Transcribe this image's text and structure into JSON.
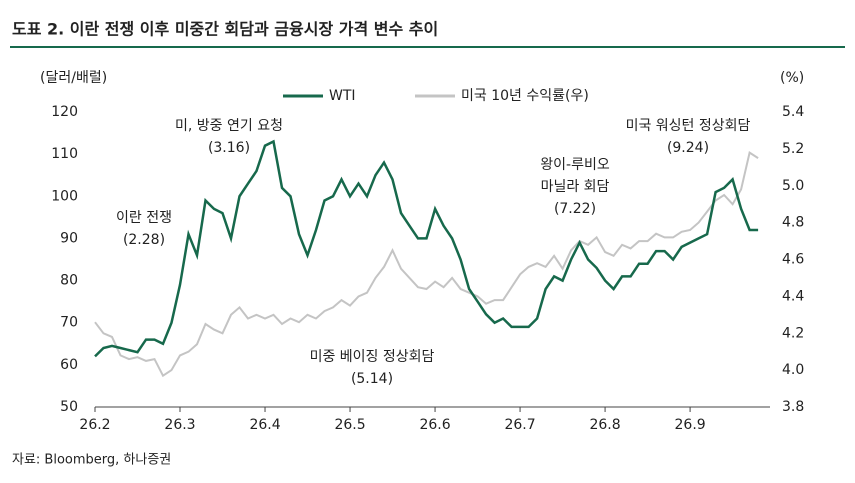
{
  "chart_data": {
    "type": "line",
    "title": "도표 2. 이란 전쟁 이후 미중간 회담과 금융시장 가격 변수 추이",
    "y_label": "(달러/배럴)",
    "y2_label": "(%)",
    "source": "자료: Bloomberg, 하나증권",
    "xlim": [
      26.2,
      26.994
    ],
    "xticks": [
      26.2,
      26.3,
      26.4,
      26.5,
      26.6,
      26.7,
      26.8,
      26.9
    ],
    "ylim": [
      50,
      120
    ],
    "yticks": [
      50,
      60,
      70,
      80,
      90,
      100,
      110,
      120
    ],
    "y2lim": [
      3.8,
      5.4
    ],
    "y2ticks": [
      3.8,
      {
        "value": 4,
        "label": "4.0"
      },
      4.2,
      4.4,
      4.6,
      4.8,
      {
        "value": 5,
        "label": "5.0"
      },
      5.2,
      5.4
    ],
    "x": [
      26.2,
      26.21,
      26.22,
      26.23,
      26.24,
      26.25,
      26.26,
      26.27,
      26.28,
      26.29,
      26.3,
      26.31,
      26.32,
      26.33,
      26.34,
      26.35,
      26.36,
      26.37,
      26.38,
      26.39,
      26.4,
      26.41,
      26.42,
      26.43,
      26.44,
      26.45,
      26.46,
      26.47,
      26.48,
      26.49,
      26.5,
      26.51,
      26.52,
      26.53,
      26.54,
      26.55,
      26.56,
      26.57,
      26.58,
      26.59,
      26.6,
      26.61,
      26.62,
      26.63,
      26.64,
      26.65,
      26.66,
      26.67,
      26.68,
      26.69,
      26.7,
      26.71,
      26.72,
      26.73,
      26.74,
      26.75,
      26.76,
      26.77,
      26.78,
      26.79,
      26.8,
      26.81,
      26.82,
      26.83,
      26.84,
      26.85,
      26.86,
      26.87,
      26.88,
      26.89,
      26.9,
      26.91,
      26.92,
      26.93,
      26.94,
      26.95,
      26.96,
      26.97,
      26.98
    ],
    "series": [
      {
        "name": "WTI",
        "color": "#17694c",
        "values": [
          62,
          64,
          64.5,
          64,
          63.5,
          63,
          66,
          66,
          65,
          70,
          79,
          91,
          86,
          99,
          97,
          96,
          90,
          100,
          103,
          106,
          112,
          113,
          102,
          100,
          91,
          86,
          92,
          99,
          100,
          104,
          100,
          103,
          100,
          105,
          108,
          104,
          96,
          93,
          90,
          90,
          97,
          93,
          90,
          85,
          78,
          75,
          72,
          70,
          71,
          69,
          69,
          69,
          71,
          78,
          81,
          80,
          85,
          89,
          85,
          83,
          80,
          78,
          81,
          81,
          84,
          84,
          87,
          87,
          85,
          88,
          89,
          90,
          91,
          101,
          102,
          104,
          97,
          92,
          92
        ]
      },
      {
        "name": "미국 10년 수익률(우)",
        "color": "#c4c4c4",
        "axis": "y2",
        "values": [
          4.26,
          4.2,
          4.18,
          4.08,
          4.06,
          4.07,
          4.05,
          4.06,
          3.97,
          4.0,
          4.08,
          4.1,
          4.14,
          4.25,
          4.22,
          4.2,
          4.3,
          4.34,
          4.28,
          4.3,
          4.28,
          4.3,
          4.25,
          4.28,
          4.26,
          4.3,
          4.28,
          4.32,
          4.34,
          4.38,
          4.35,
          4.4,
          4.42,
          4.5,
          4.56,
          4.65,
          4.55,
          4.5,
          4.45,
          4.44,
          4.48,
          4.45,
          4.5,
          4.44,
          4.42,
          4.4,
          4.36,
          4.38,
          4.38,
          4.45,
          4.52,
          4.56,
          4.58,
          4.56,
          4.62,
          4.55,
          4.65,
          4.7,
          4.68,
          4.72,
          4.64,
          4.62,
          4.68,
          4.66,
          4.7,
          4.7,
          4.74,
          4.72,
          4.72,
          4.75,
          4.76,
          4.8,
          4.86,
          4.92,
          4.95,
          4.9,
          4.98,
          5.18,
          5.15
        ]
      }
    ],
    "annotations": [
      [
        "미, 방중 연기 요청",
        "(3.16)"
      ],
      [
        "이란 전쟁",
        "(2.28)"
      ],
      [
        "미중 베이징 정상회담",
        "(5.14)"
      ],
      [
        "왕이-루비오",
        "마닐라 회담",
        "(7.22)"
      ],
      [
        "미국 워싱턴 정상회담",
        "(9.24)"
      ]
    ]
  }
}
